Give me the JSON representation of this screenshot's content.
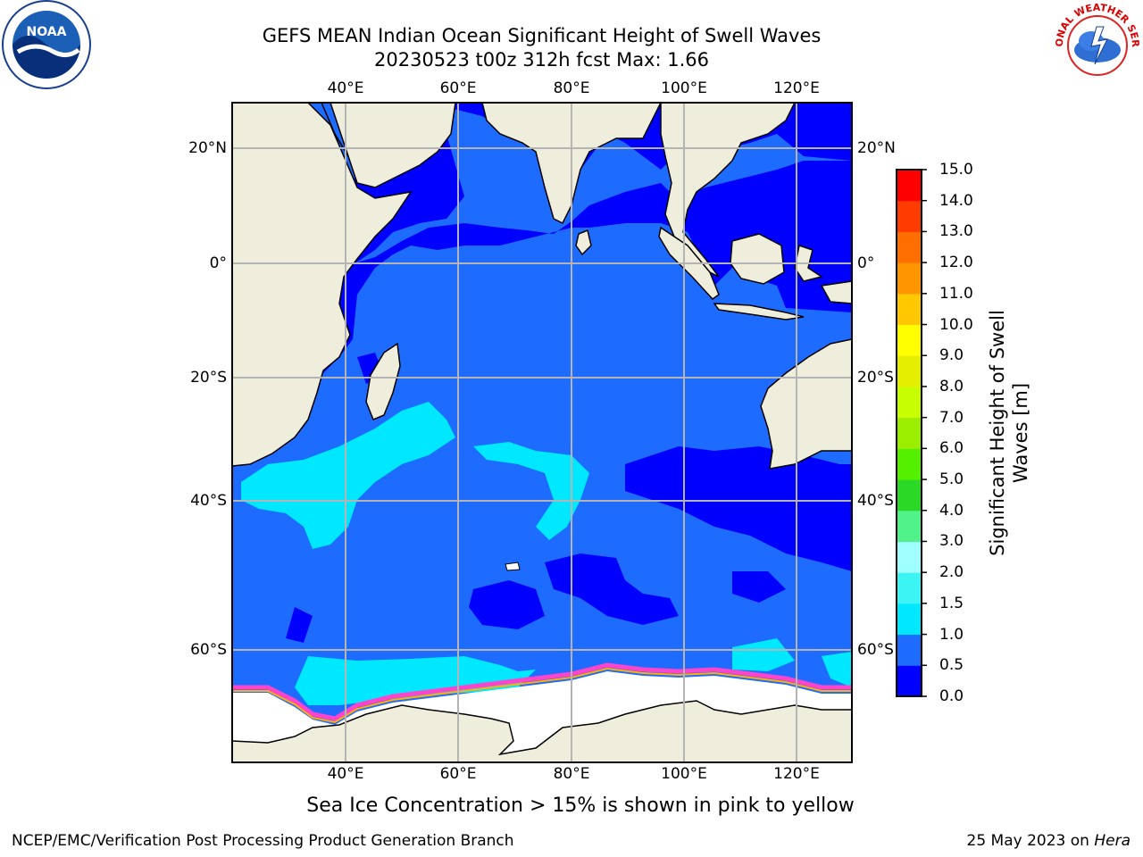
{
  "title": {
    "line1": "GEFS MEAN Indian Ocean Significant Height of Swell Waves",
    "line2": "20230523 t00z 312h fcst   Max: 1.66"
  },
  "map": {
    "lon_ticks": [
      "40°E",
      "60°E",
      "80°E",
      "100°E",
      "120°E"
    ],
    "lat_ticks_left": [
      "20°N",
      "0°",
      "20°S",
      "40°S",
      "60°S"
    ],
    "lat_ticks_right": [
      "20°N",
      "0°",
      "20°S",
      "40°S",
      "60°S"
    ],
    "lon_range": [
      20,
      130
    ],
    "lat_range": [
      -73,
      28
    ],
    "colors": {
      "land": "#efeedd",
      "sea_ice": "#ffffff",
      "grid": "#b4b4b4"
    }
  },
  "colorbar": {
    "label_line1": "Significant Height of Swell",
    "label_line2": "Waves [m]",
    "ticks": [
      "0.0",
      "0.5",
      "1.0",
      "1.5",
      "2.0",
      "3.0",
      "4.0",
      "5.0",
      "6.0",
      "7.0",
      "8.0",
      "9.0",
      "10.0",
      "11.0",
      "12.0",
      "13.0",
      "14.0",
      "15.0"
    ],
    "colors": [
      "#0000ff",
      "#1e6cff",
      "#00e8ff",
      "#3cf4f4",
      "#a0ffff",
      "#52f28a",
      "#2cd826",
      "#55f000",
      "#9bee00",
      "#c8ff00",
      "#e6ee00",
      "#ffff00",
      "#ffc800",
      "#ff9600",
      "#ff6e00",
      "#ff3c00",
      "#ff0000"
    ]
  },
  "note": "Sea Ice Concentration > 15% is shown in pink to yellow",
  "footer": {
    "left": "NCEP/EMC/Verification Post Processing Product Generation Branch",
    "right_prefix": "25 May 2023 on ",
    "right_host": "Hera"
  },
  "logos": {
    "noaa_text": "NOAA",
    "nws_text": "NATIONAL WEATHER SERVICE"
  }
}
